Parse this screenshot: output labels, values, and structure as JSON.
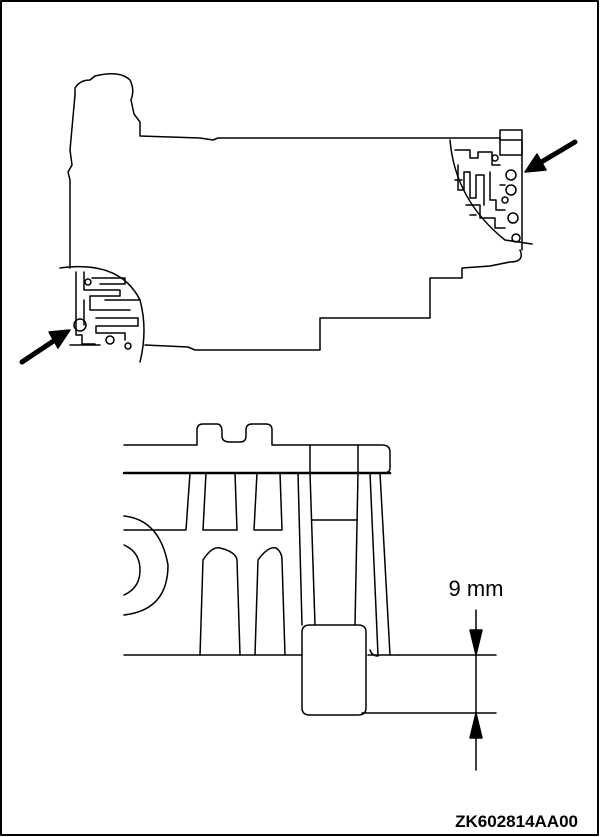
{
  "figure": {
    "dimension_label": "9 mm",
    "figure_code": "ZK602814AA00"
  }
}
